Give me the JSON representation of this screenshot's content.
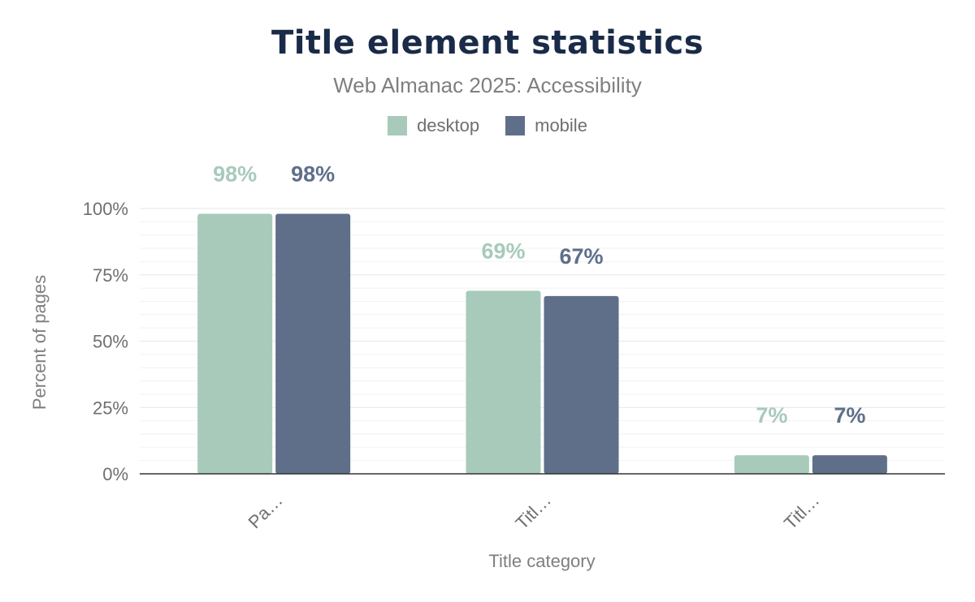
{
  "chart_data": {
    "type": "bar",
    "title": "Title element statistics",
    "subtitle": "Web Almanac 2025: Accessibility",
    "xlabel": "Title category",
    "ylabel": "Percent of pages",
    "categories": [
      "Pa…",
      "Titl…",
      "Titl…"
    ],
    "series": [
      {
        "name": "desktop",
        "color": "#a8cabb",
        "values": [
          98,
          69,
          7
        ],
        "labels": [
          "98%",
          "69%",
          "7%"
        ]
      },
      {
        "name": "mobile",
        "color": "#5f6f8a",
        "values": [
          98,
          67,
          7
        ],
        "labels": [
          "98%",
          "67%",
          "7%"
        ]
      }
    ],
    "ylim": [
      0,
      100
    ],
    "yticks": [
      0,
      25,
      50,
      75,
      100
    ],
    "ytick_labels": [
      "0%",
      "25%",
      "50%",
      "75%",
      "100%"
    ],
    "grid": true,
    "legend": "top-center"
  }
}
